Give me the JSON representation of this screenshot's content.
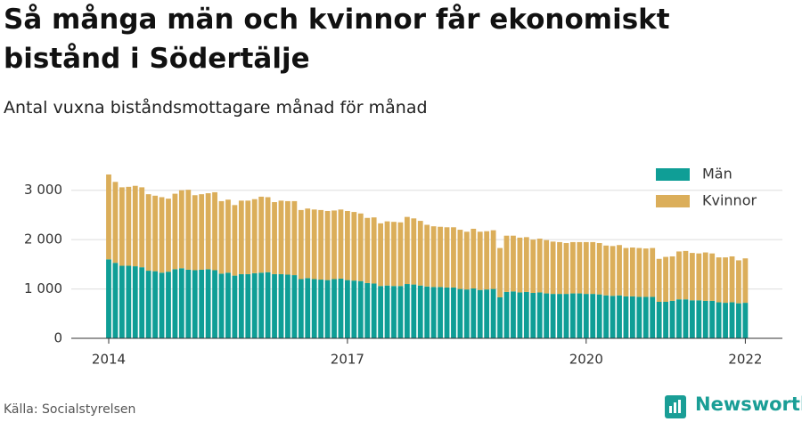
{
  "chart_data": {
    "type": "stacked_bar",
    "title": "Så många män och kvinnor får ekonomiskt bistånd i Södertälje",
    "subtitle": "Antal vuxna biståndsmottagare månad för månad",
    "source": "Källa: Socialstyrelsen",
    "logo": "Newsworthy",
    "x": [
      "2014-01",
      "2014-02",
      "2014-03",
      "2014-04",
      "2014-05",
      "2014-06",
      "2014-07",
      "2014-08",
      "2014-09",
      "2014-10",
      "2014-11",
      "2014-12",
      "2015-01",
      "2015-02",
      "2015-03",
      "2015-04",
      "2015-05",
      "2015-06",
      "2015-07",
      "2015-08",
      "2015-09",
      "2015-10",
      "2015-11",
      "2015-12",
      "2016-01",
      "2016-02",
      "2016-03",
      "2016-04",
      "2016-05",
      "2016-06",
      "2016-07",
      "2016-08",
      "2016-09",
      "2016-10",
      "2016-11",
      "2016-12",
      "2017-01",
      "2017-02",
      "2017-03",
      "2017-04",
      "2017-05",
      "2017-06",
      "2017-07",
      "2017-08",
      "2017-09",
      "2017-10",
      "2017-11",
      "2017-12",
      "2018-01",
      "2018-02",
      "2018-03",
      "2018-04",
      "2018-05",
      "2018-06",
      "2018-07",
      "2018-08",
      "2018-09",
      "2018-10",
      "2018-11",
      "2018-12",
      "2019-01",
      "2019-02",
      "2019-03",
      "2019-04",
      "2019-05",
      "2019-06",
      "2019-07",
      "2019-08",
      "2019-09",
      "2019-10",
      "2019-11",
      "2019-12",
      "2020-01",
      "2020-02",
      "2020-03",
      "2020-04",
      "2020-05",
      "2020-06",
      "2020-07",
      "2020-08",
      "2020-09",
      "2020-10",
      "2020-11",
      "2020-12",
      "2021-01",
      "2021-02",
      "2021-03",
      "2021-04",
      "2021-05",
      "2021-06",
      "2021-07",
      "2021-08",
      "2021-09",
      "2021-10",
      "2021-11",
      "2021-12",
      "2022-01"
    ],
    "series": [
      {
        "name": "Män",
        "color": "#0f9e96",
        "values": [
          1600,
          1530,
          1470,
          1470,
          1460,
          1440,
          1370,
          1360,
          1330,
          1350,
          1400,
          1420,
          1390,
          1380,
          1390,
          1400,
          1380,
          1310,
          1330,
          1270,
          1300,
          1300,
          1320,
          1330,
          1340,
          1300,
          1300,
          1290,
          1280,
          1200,
          1220,
          1200,
          1190,
          1180,
          1200,
          1210,
          1180,
          1170,
          1160,
          1120,
          1110,
          1060,
          1070,
          1060,
          1060,
          1100,
          1090,
          1070,
          1050,
          1040,
          1040,
          1030,
          1030,
          1000,
          990,
          1010,
          980,
          990,
          1000,
          830,
          940,
          950,
          930,
          940,
          920,
          930,
          910,
          900,
          900,
          900,
          910,
          910,
          900,
          900,
          890,
          870,
          860,
          870,
          850,
          850,
          840,
          840,
          840,
          740,
          740,
          760,
          790,
          790,
          770,
          770,
          760,
          760,
          730,
          720,
          730,
          710,
          720
        ]
      },
      {
        "name": "Kvinnor",
        "color": "#dbae5a",
        "values": [
          1720,
          1640,
          1590,
          1600,
          1630,
          1620,
          1550,
          1530,
          1530,
          1480,
          1530,
          1580,
          1620,
          1520,
          1530,
          1540,
          1580,
          1470,
          1480,
          1430,
          1490,
          1490,
          1500,
          1540,
          1520,
          1460,
          1490,
          1490,
          1500,
          1400,
          1410,
          1410,
          1410,
          1400,
          1390,
          1400,
          1400,
          1390,
          1370,
          1320,
          1340,
          1270,
          1300,
          1300,
          1290,
          1360,
          1340,
          1310,
          1250,
          1230,
          1220,
          1220,
          1220,
          1200,
          1170,
          1210,
          1180,
          1180,
          1190,
          1000,
          1140,
          1130,
          1110,
          1110,
          1080,
          1090,
          1080,
          1060,
          1050,
          1030,
          1040,
          1040,
          1050,
          1050,
          1040,
          1010,
          1010,
          1020,
          980,
          990,
          990,
          980,
          990,
          870,
          910,
          900,
          970,
          980,
          960,
          950,
          980,
          960,
          910,
          920,
          930,
          870,
          900
        ]
      }
    ],
    "ylim": [
      0,
      3500
    ],
    "yticks": [
      0,
      {
        "value": 1000,
        "label": "1 000"
      },
      {
        "value": 2000,
        "label": "2 000"
      },
      {
        "value": 3000,
        "label": "3 000"
      }
    ],
    "xticks": [
      2014,
      2017,
      2020,
      2022
    ],
    "grid": true,
    "legend": "top-right"
  }
}
